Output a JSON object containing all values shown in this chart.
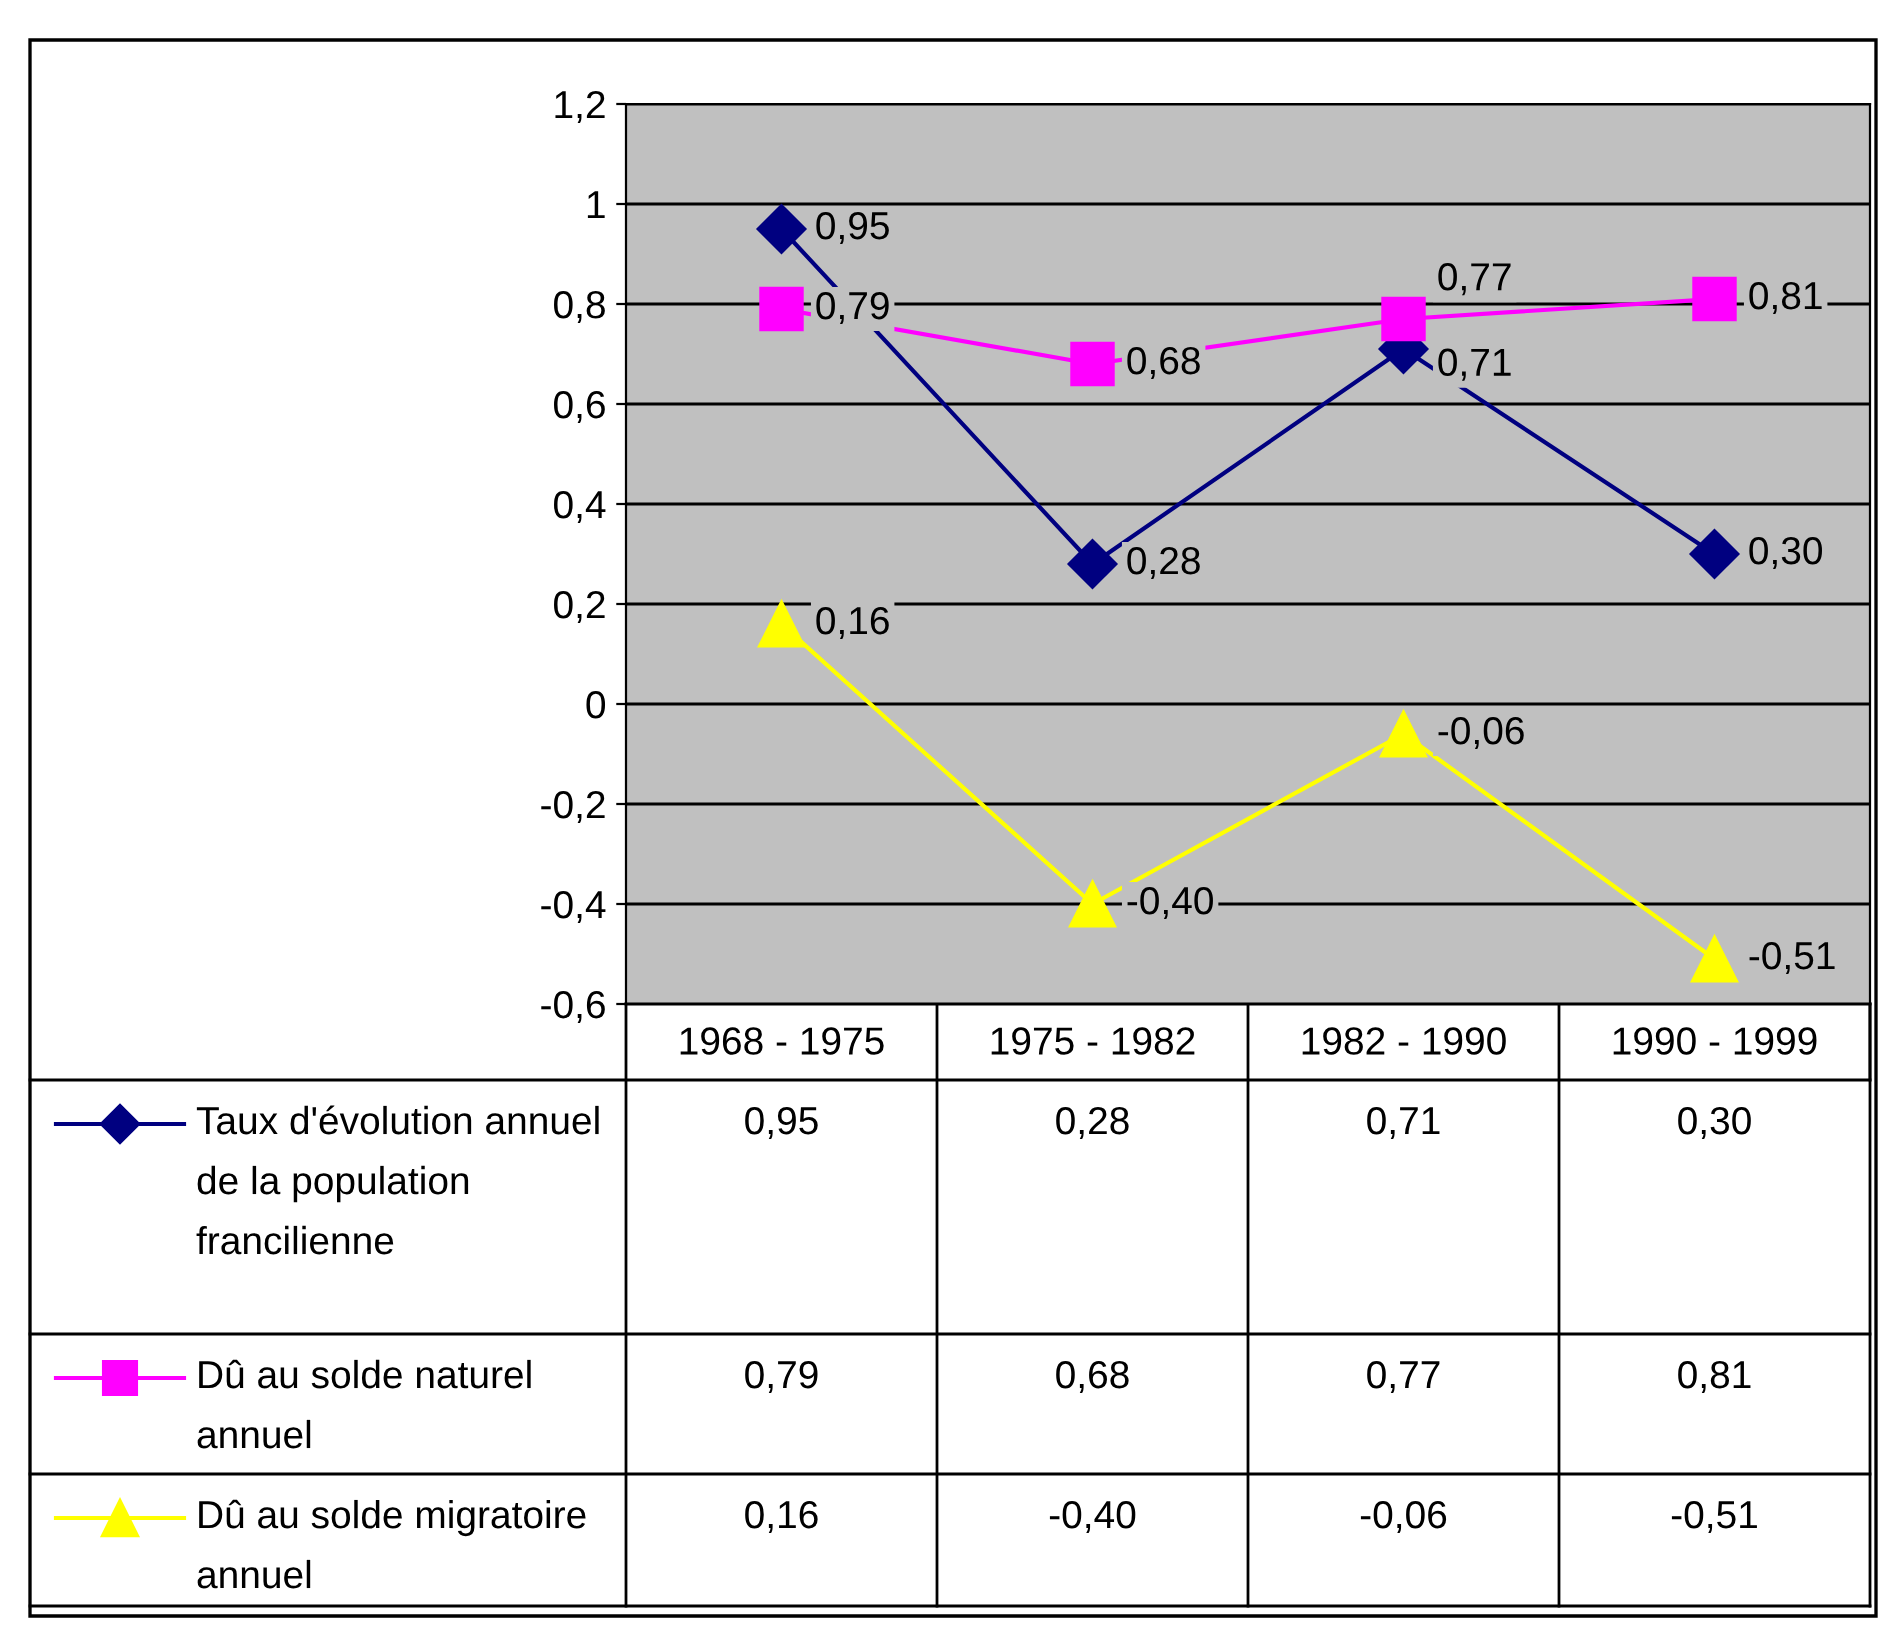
{
  "chart_data": {
    "type": "line",
    "categories": [
      "1968 - 1975",
      "1975 - 1982",
      "1982 - 1990",
      "1990 - 1999"
    ],
    "series": [
      {
        "name": "Taux d'évolution annuel de la population francilienne",
        "color": "#000080",
        "marker": "diamond",
        "values": [
          0.95,
          0.28,
          0.71,
          0.3
        ],
        "value_labels": [
          "0,95",
          "0,28",
          "0,71",
          "0,30"
        ]
      },
      {
        "name": "Dû au solde naturel annuel",
        "color": "#ff00ff",
        "marker": "square",
        "values": [
          0.79,
          0.68,
          0.77,
          0.81
        ],
        "value_labels": [
          "0,79",
          "0,68",
          "0,77",
          "0,81"
        ]
      },
      {
        "name": "Dû au solde migratoire annuel",
        "color": "#ffff00",
        "marker": "triangle",
        "values": [
          0.16,
          -0.4,
          -0.06,
          -0.51
        ],
        "value_labels": [
          "0,16",
          "-0,40",
          "-0,06",
          "-0,51"
        ]
      }
    ],
    "ylim": [
      -0.6,
      1.2
    ],
    "yticks": [
      {
        "value": -0.6,
        "label": "-0,6"
      },
      {
        "value": -0.4,
        "label": "-0,4"
      },
      {
        "value": -0.2,
        "label": "-0,2"
      },
      0,
      {
        "value": 0.2,
        "label": "0,2"
      },
      {
        "value": 0.4,
        "label": "0,4"
      },
      {
        "value": 0.6,
        "label": "0,6"
      },
      {
        "value": 0.8,
        "label": "0,8"
      },
      1,
      {
        "value": 1.2,
        "label": "1,2"
      }
    ],
    "grid": "y",
    "legend": "bottom",
    "line_style": "solid"
  }
}
